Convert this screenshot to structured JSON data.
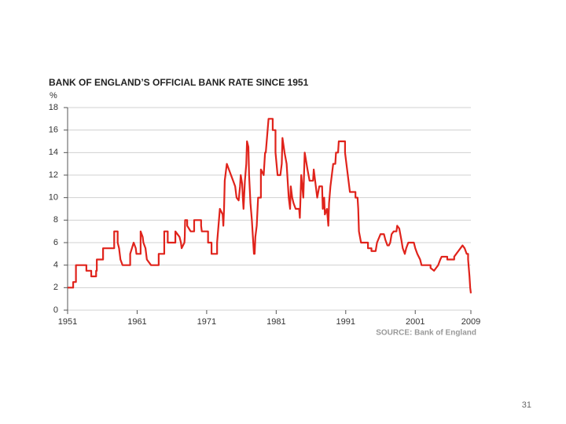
{
  "chart_data": {
    "type": "line",
    "title": "BANK OF ENGLAND’S OFFICIAL BANK RATE SINCE 1951",
    "y_label": "%",
    "source": "SOURCE: Bank of England",
    "x": [
      1951,
      1951.8,
      1951.8,
      1952.2,
      1952.2,
      1953.7,
      1953.7,
      1954.4,
      1954.4,
      1955.1,
      1955.1,
      1955.2,
      1955.2,
      1956.1,
      1956.1,
      1957.7,
      1957.7,
      1958.2,
      1958.2,
      1958.4,
      1958.5,
      1958.6,
      1958.9,
      1960,
      1960,
      1960.5,
      1960.8,
      1960.9,
      1961.5,
      1961.5,
      1961.8,
      1961.9,
      1962.2,
      1962.3,
      1962.4,
      1963,
      1964.1,
      1964.1,
      1964.9,
      1964.9,
      1965.4,
      1965.4,
      1966.5,
      1966.5,
      1967.1,
      1967.3,
      1967.4,
      1967.8,
      1967.85,
      1967.9,
      1968.2,
      1968.2,
      1968.7,
      1969.2,
      1969.2,
      1970.2,
      1970.2,
      1970.3,
      1971.2,
      1971.2,
      1971.7,
      1971.7,
      1972.5,
      1972.5,
      1972.7,
      1972.9,
      1973.3,
      1973.4,
      1973.5,
      1973.6,
      1973.9,
      1974.2,
      1974.5,
      1974.8,
      1975.1,
      1975.3,
      1975.6,
      1975.8,
      1975.9,
      1976.1,
      1976.2,
      1976.3,
      1976.5,
      1976.7,
      1976.8,
      1977,
      1977.1,
      1977.3,
      1977.5,
      1977.7,
      1977.8,
      1977.9,
      1978,
      1978.2,
      1978.4,
      1978.8,
      1978.8,
      1979.2,
      1979.4,
      1979.5,
      1979.9,
      1980.5,
      1980.5,
      1980.9,
      1980.9,
      1981.2,
      1981.6,
      1981.8,
      1981.9,
      1982.2,
      1982.5,
      1982.7,
      1982.8,
      1983,
      1983.1,
      1983.3,
      1983.5,
      1983.8,
      1984.3,
      1984.4,
      1984.6,
      1984.9,
      1985.1,
      1985.5,
      1985.8,
      1986.3,
      1986.4,
      1986.7,
      1986.9,
      1987.2,
      1987.6,
      1987.7,
      1987.9,
      1988,
      1988.3,
      1988.5,
      1988.6,
      1988.8,
      1989,
      1989.2,
      1989.5,
      1989.6,
      1989.9,
      1990,
      1990.9,
      1990.9,
      1991.2,
      1991.4,
      1991.6,
      1992.4,
      1992.4,
      1992.7,
      1992.8,
      1992.9,
      1993.2,
      1994.2,
      1994.2,
      1994.7,
      1994.7,
      1995.3,
      1995.5,
      1996,
      1996.5,
      1996.7,
      1997,
      1997.2,
      1997.4,
      1997.6,
      1997.9,
      1998.3,
      1998.4,
      1998.7,
      1999,
      1999.2,
      1999.5,
      1999.7,
      2000,
      2000.8,
      2001,
      2001.3,
      2001.7,
      2001.9,
      2003.2,
      2003.2,
      2003.7,
      2004,
      2004.3,
      2004.6,
      2004.8,
      2005.6,
      2005.6,
      2006.6,
      2006.6,
      2006.9,
      2007.2,
      2007.5,
      2007.8,
      2008.1,
      2008.4,
      2008.6,
      2008.6,
      2008.8,
      2008.9,
      2009
    ],
    "series": [
      {
        "name": "Bank rate",
        "color": "#e0231b",
        "values": [
          2,
          2,
          2.5,
          2.5,
          4,
          4,
          3.5,
          3.5,
          3,
          3,
          3.5,
          3.5,
          4.5,
          4.5,
          5.5,
          5.5,
          7,
          7,
          6,
          5.5,
          5,
          4.5,
          4,
          4,
          5,
          6,
          5.5,
          5,
          5,
          7,
          6.5,
          6,
          5.5,
          5,
          4.5,
          4,
          4,
          5,
          5,
          7,
          7,
          6,
          6,
          7,
          6.5,
          6,
          5.5,
          6,
          6.5,
          8,
          8,
          7.5,
          7,
          7,
          8,
          8,
          7.5,
          7,
          7,
          6,
          6,
          5,
          5,
          6,
          7.5,
          9,
          8.5,
          7.5,
          9,
          11.5,
          13,
          12.5,
          12,
          11.5,
          11,
          10,
          9.75,
          11,
          12,
          11.25,
          10,
          9,
          11.5,
          13,
          15,
          14.5,
          12,
          9.5,
          8,
          6,
          5,
          5,
          6.5,
          7.5,
          10,
          10,
          12.5,
          12,
          14,
          14,
          17,
          17,
          16,
          16,
          14,
          12,
          12,
          13,
          15.3,
          14,
          13,
          11,
          10,
          9,
          11,
          10,
          9.5,
          9,
          9,
          8.2,
          12,
          10,
          14,
          12.5,
          11.5,
          11.5,
          12.5,
          11,
          10,
          11,
          11,
          9,
          10,
          8.5,
          9,
          7.5,
          9.5,
          11,
          12,
          13,
          13,
          14,
          14,
          15,
          15,
          14,
          12.5,
          11.5,
          10.5,
          10.5,
          10,
          10,
          9,
          7,
          6,
          6,
          5.5,
          5.5,
          5.25,
          5.25,
          6,
          6.75,
          6.75,
          6.25,
          5.75,
          5.75,
          6,
          6.75,
          7,
          7,
          7.5,
          7.25,
          6.25,
          5.5,
          5,
          5.5,
          6,
          6,
          5.5,
          5,
          4.5,
          4,
          4,
          3.75,
          3.5,
          3.75,
          4,
          4.5,
          4.75,
          4.75,
          4.5,
          4.5,
          4.75,
          5,
          5.25,
          5.5,
          5.75,
          5.5,
          5,
          5,
          4.5,
          3,
          2,
          1.5
        ]
      }
    ],
    "xlim": [
      1951,
      2009
    ],
    "xticks": [
      1951,
      1961,
      1971,
      1981,
      1991,
      2001,
      2009
    ],
    "ylim": [
      0,
      18
    ],
    "yticks": [
      0,
      2,
      4,
      6,
      8,
      10,
      12,
      14,
      16,
      18
    ],
    "grid": true
  },
  "page_number": "31"
}
